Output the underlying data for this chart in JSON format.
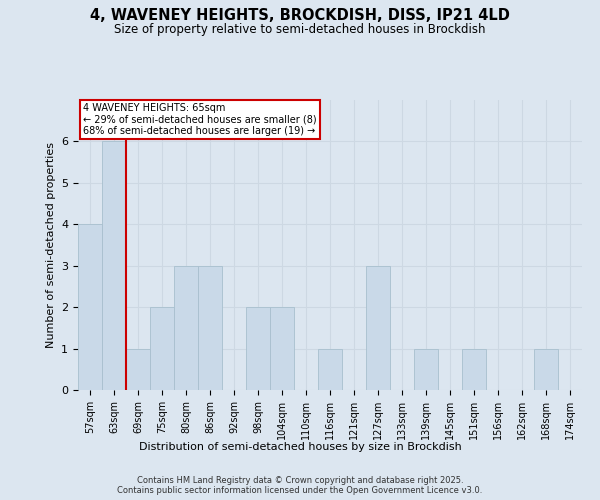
{
  "title_line1": "4, WAVENEY HEIGHTS, BROCKDISH, DISS, IP21 4LD",
  "title_line2": "Size of property relative to semi-detached houses in Brockdish",
  "xlabel": "Distribution of semi-detached houses by size in Brockdish",
  "ylabel": "Number of semi-detached properties",
  "categories": [
    "57sqm",
    "63sqm",
    "69sqm",
    "75sqm",
    "80sqm",
    "86sqm",
    "92sqm",
    "98sqm",
    "104sqm",
    "110sqm",
    "116sqm",
    "121sqm",
    "127sqm",
    "133sqm",
    "139sqm",
    "145sqm",
    "151sqm",
    "156sqm",
    "162sqm",
    "168sqm",
    "174sqm"
  ],
  "values": [
    4,
    6,
    1,
    2,
    3,
    3,
    0,
    2,
    2,
    0,
    1,
    0,
    3,
    0,
    1,
    0,
    1,
    0,
    0,
    1,
    0
  ],
  "bar_color": "#c9d9e8",
  "bar_edge_color": "#a8bfce",
  "subject_line_color": "#cc0000",
  "subject_label": "4 WAVENEY HEIGHTS: 65sqm",
  "annotation_line1": "← 29% of semi-detached houses are smaller (8)",
  "annotation_line2": "68% of semi-detached houses are larger (19) →",
  "annotation_box_color": "#ffffff",
  "annotation_box_edge": "#cc0000",
  "grid_color": "#cdd8e3",
  "bg_color": "#dce6f0",
  "plot_bg_color": "#dce6f0",
  "ylim": [
    0,
    7
  ],
  "yticks": [
    0,
    1,
    2,
    3,
    4,
    5,
    6,
    7
  ],
  "footer_line1": "Contains HM Land Registry data © Crown copyright and database right 2025.",
  "footer_line2": "Contains public sector information licensed under the Open Government Licence v3.0."
}
